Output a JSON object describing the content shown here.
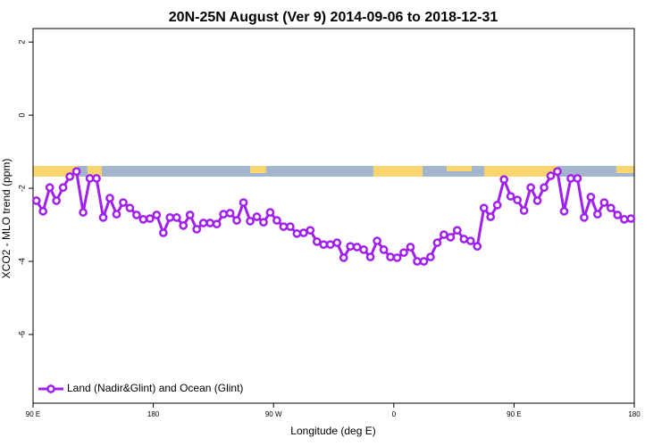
{
  "chart_data": {
    "type": "line",
    "title": "20N-25N August (Ver 9)   2014-09-06 to 2018-12-31",
    "x_label": "Longitude (deg E)",
    "y_label": "XCO2 - MLO trend (ppm)",
    "x": [
      92.5,
      97.5,
      102.5,
      107.5,
      112.5,
      117.5,
      122.5,
      127.5,
      132.5,
      137.5,
      142.5,
      147.5,
      152.5,
      157.5,
      162.5,
      167.5,
      172.5,
      177.5,
      182.5,
      187.5,
      192.5,
      197.5,
      202.5,
      207.5,
      212.5,
      217.5,
      222.5,
      227.5,
      232.5,
      237.5,
      242.5,
      247.5,
      252.5,
      257.5,
      262.5,
      267.5,
      272.5,
      277.5,
      282.5,
      287.5,
      292.5,
      297.5,
      302.5,
      307.5,
      312.5,
      317.5,
      322.5,
      327.5,
      332.5,
      337.5,
      342.5,
      347.5,
      352.5,
      357.5,
      362.5,
      367.5,
      372.5,
      377.5,
      382.5,
      387.5,
      392.5,
      397.5,
      402.5,
      407.5,
      412.5,
      417.5,
      422.5,
      427.5,
      432.5,
      437.5,
      442.5,
      447.5,
      452.5,
      457.5,
      462.5,
      467.5,
      472.5,
      477.5,
      482.5,
      487.5,
      492.5,
      497.5,
      502.5,
      507.5,
      512.5,
      517.5,
      522.5,
      527.5,
      532.5,
      537.5
    ],
    "series": [
      {
        "name": "Land (Nadir&Glint) and Ocean (Glint)",
        "color": "#a020f0",
        "values": [
          -2.34,
          -2.63,
          -1.98,
          -2.34,
          -1.98,
          -1.68,
          -1.54,
          -2.66,
          -1.73,
          -1.73,
          -2.8,
          -2.27,
          -2.71,
          -2.39,
          -2.54,
          -2.73,
          -2.85,
          -2.83,
          -2.73,
          -3.22,
          -2.8,
          -2.8,
          -3.02,
          -2.73,
          -3.12,
          -2.95,
          -2.95,
          -2.98,
          -2.71,
          -2.68,
          -2.88,
          -2.39,
          -2.9,
          -2.78,
          -2.93,
          -2.66,
          -2.88,
          -3.05,
          -3.05,
          -3.24,
          -3.22,
          -3.15,
          -3.46,
          -3.54,
          -3.54,
          -3.49,
          -3.9,
          -3.59,
          -3.61,
          -3.68,
          -3.88,
          -3.44,
          -3.68,
          -3.88,
          -3.9,
          -3.76,
          -3.61,
          -4.0,
          -4.0,
          -3.88,
          -3.49,
          -3.27,
          -3.34,
          -3.15,
          -3.39,
          -3.44,
          -3.59,
          -2.54,
          -2.78,
          -2.46,
          -1.76,
          -2.22,
          -2.32,
          -2.61,
          -1.98,
          -2.34,
          -1.98,
          -1.66,
          -1.54,
          -2.63,
          -1.73,
          -1.73,
          -2.8,
          -2.24,
          -2.71,
          -2.39,
          -2.54,
          -2.73,
          -2.85,
          -2.83
        ]
      }
    ],
    "xlim": [
      90,
      540
    ],
    "xticks": [
      {
        "value": 90,
        "label": "90 E"
      },
      {
        "value": 180,
        "label": "180"
      },
      {
        "value": 270,
        "label": "90 W"
      },
      {
        "value": 360,
        "label": "0"
      },
      {
        "value": 450,
        "label": "90 E"
      },
      {
        "value": 540,
        "label": "180"
      }
    ],
    "ylim": [
      -7.88,
      2.37
    ],
    "yticks": [
      2,
      0,
      -2,
      -4,
      -6
    ],
    "legend": "bottom-left",
    "grid": false
  }
}
